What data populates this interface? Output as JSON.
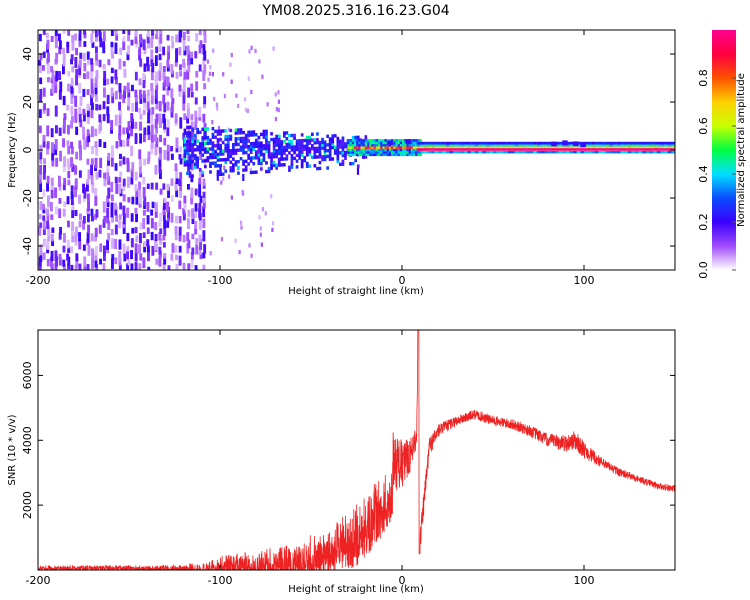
{
  "title": "YM08.2025.316.16.23.G04",
  "chart_data": [
    {
      "type": "heatmap",
      "name": "spectrogram",
      "xlabel": "Height of straight line (km)",
      "ylabel": "Frequency (Hz)",
      "xlim": [
        -200,
        150
      ],
      "ylim": [
        -50,
        50
      ],
      "xticks": [
        "-200",
        "-100",
        "0",
        "100"
      ],
      "yticks": [
        "-40",
        "-20",
        "0",
        "20",
        "40"
      ],
      "description_regions": [
        {
          "x_range": [
            -200,
            -110
          ],
          "note": "broadband noise, low amplitude 0.0–0.2"
        },
        {
          "x_range": [
            -120,
            -20
          ],
          "freq_range": [
            -10,
            10
          ],
          "amplitude": [
            0.15,
            0.4
          ]
        },
        {
          "x_range": [
            -30,
            10
          ],
          "freq_range": [
            -3,
            3
          ],
          "amplitude": [
            0.5,
            1.0
          ]
        },
        {
          "x_range": [
            10,
            150
          ],
          "freq_range": [
            -1,
            1
          ],
          "amplitude": [
            0.9,
            1.0
          ]
        }
      ],
      "colorbar": {
        "label": "Normalized spectral amplitude",
        "range": [
          0,
          1
        ],
        "ticks": [
          "0.0",
          "0.2",
          "0.4",
          "0.6",
          "0.8"
        ],
        "colors": [
          "#ffffff",
          "#a04cff",
          "#3a00ff",
          "#0a4cff",
          "#00e0ff",
          "#00ff40",
          "#c8ff00",
          "#ffd000",
          "#ff5000",
          "#ff0040",
          "#ff0090"
        ]
      }
    },
    {
      "type": "line",
      "name": "snr",
      "xlabel": "Height of straight line (km)",
      "ylabel": "SNR (10 * v/v)",
      "xlim": [
        -200,
        150
      ],
      "ylim": [
        0,
        7400
      ],
      "xticks": [
        "-200",
        "-100",
        "0",
        "100"
      ],
      "yticks": [
        "2000",
        "4000",
        "6000"
      ],
      "color": "#ee2222",
      "envelope_x": [
        -200,
        -150,
        -120,
        -110,
        -100,
        -80,
        -60,
        -40,
        -25,
        -15,
        -10,
        -5,
        0,
        5,
        8,
        9,
        10,
        15,
        20,
        30,
        40,
        50,
        60,
        70,
        80,
        90,
        95,
        100,
        110,
        120,
        130,
        140,
        150
      ],
      "envelope_y": [
        150,
        150,
        170,
        250,
        450,
        600,
        900,
        1400,
        2100,
        2700,
        3000,
        3400,
        3200,
        3600,
        4200,
        7300,
        900,
        3800,
        4300,
        4600,
        4800,
        4600,
        4500,
        4300,
        4000,
        3900,
        4000,
        3700,
        3300,
        3000,
        2800,
        2600,
        2500
      ],
      "noise_amplitude_y": [
        150,
        150,
        200,
        400,
        600,
        800,
        1100,
        1500,
        2000,
        2000,
        1900,
        1800,
        1600,
        1000,
        800,
        0,
        800,
        600,
        400,
        300,
        300,
        300,
        300,
        350,
        400,
        500,
        600,
        500,
        300,
        250,
        200,
        200,
        200
      ]
    }
  ]
}
